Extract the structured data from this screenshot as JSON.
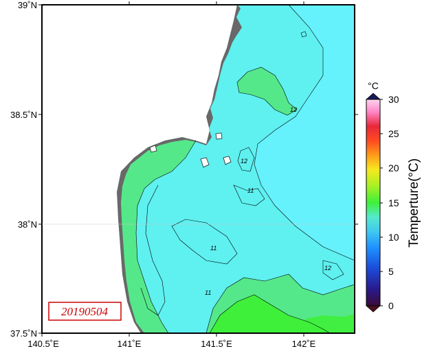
{
  "map": {
    "date_label": "20190504",
    "lat_ticks": [
      "39˚N",
      "38.5˚N",
      "38˚N",
      "37.5˚N"
    ],
    "lon_ticks": [
      "140.5˚E",
      "141˚E",
      "141.5˚E",
      "142˚E"
    ],
    "contour_labels": [
      "12",
      "12",
      "11",
      "11",
      "11",
      "12"
    ],
    "colors": {
      "land": "#686868",
      "sea_base": "#5ff0f0",
      "sea_light": "#66f2ff",
      "warm_patch": "#55e88a",
      "hot_patch": "#3ef03a",
      "contour": "#000000"
    }
  },
  "colorbar": {
    "unit": "°C",
    "title": "Temperture(°C)",
    "ticks": [
      "30",
      "25",
      "20",
      "15",
      "10",
      "5",
      "0"
    ],
    "min": 0,
    "max": 30
  }
}
